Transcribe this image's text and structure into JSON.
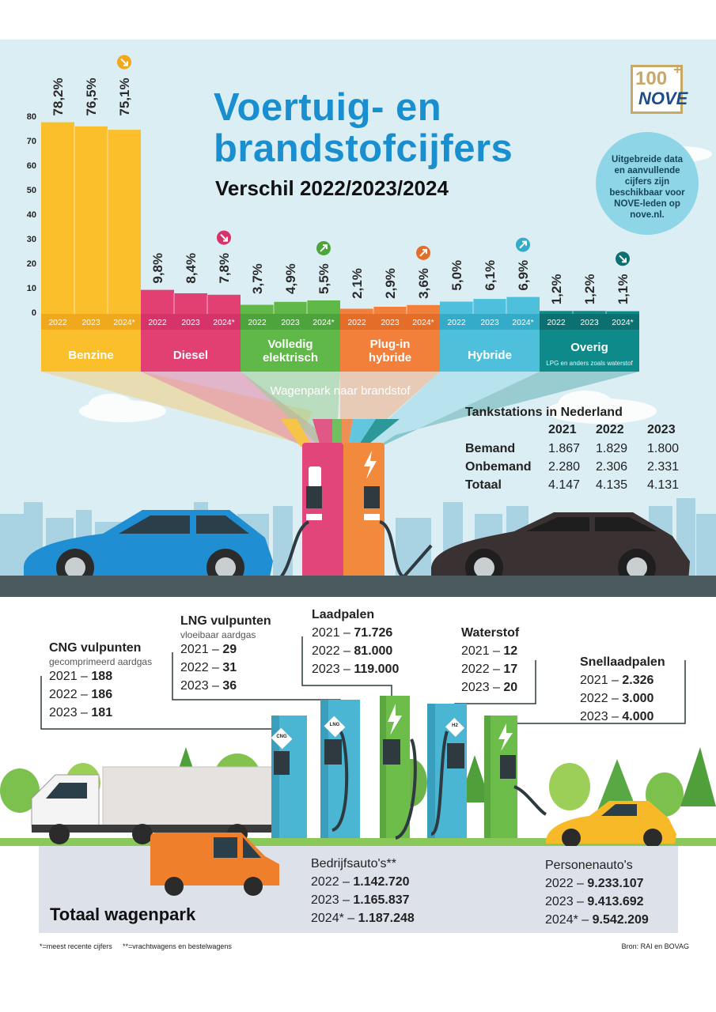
{
  "title": {
    "line1": "Voertuig- en",
    "line2": "brandstofcijfers",
    "subtitle": "Verschil 2022/2023/2024"
  },
  "logo": {
    "top": "100",
    "plus": "+",
    "name": "NOVE"
  },
  "info_bubble": {
    "lines": [
      "Uitgebreide data",
      "en aanvullende",
      "cijfers zijn",
      "beschikbaar voor",
      "NOVE-leden op",
      "nove.nl."
    ]
  },
  "chart_data": {
    "type": "bar",
    "title": "Wagenpark naar brandstof",
    "ylim": [
      0,
      80
    ],
    "yticks": [
      0,
      10,
      20,
      30,
      40,
      50,
      60,
      70,
      80
    ],
    "years": [
      "2022",
      "2023",
      "2024*"
    ],
    "groups": [
      {
        "name": "Benzine",
        "values": [
          78.2,
          76.5,
          75.1
        ],
        "labels": [
          "78,2%",
          "76,5%",
          "75,1%"
        ],
        "trend": "down",
        "color": "#fbbf2b",
        "label_color": "#f0a81c",
        "note": ""
      },
      {
        "name": "Diesel",
        "values": [
          9.8,
          8.4,
          7.8
        ],
        "labels": [
          "9,8%",
          "8,4%",
          "7,8%"
        ],
        "trend": "down",
        "color": "#e23f73",
        "label_color": "#d6336a",
        "note": ""
      },
      {
        "name": "Volledig elektrisch",
        "values": [
          3.7,
          4.9,
          5.5
        ],
        "labels": [
          "3,7%",
          "4,9%",
          "5,5%"
        ],
        "trend": "up",
        "color": "#5fb847",
        "label_color": "#4ea43c",
        "note": ""
      },
      {
        "name": "Plug-in hybride",
        "values": [
          2.1,
          2.9,
          3.6
        ],
        "labels": [
          "2,1%",
          "2,9%",
          "3,6%"
        ],
        "trend": "up",
        "color": "#f27f3a",
        "label_color": "#e56d2a",
        "note": ""
      },
      {
        "name": "Hybride",
        "values": [
          5.0,
          6.1,
          6.9
        ],
        "labels": [
          "5,0%",
          "6,1%",
          "6,9%"
        ],
        "trend": "up",
        "color": "#4ec0dc",
        "label_color": "#33abc9",
        "note": ""
      },
      {
        "name": "Overig",
        "values": [
          1.2,
          1.2,
          1.1
        ],
        "labels": [
          "1,2%",
          "1,2%",
          "1,1%"
        ],
        "trend": "down",
        "color": "#0f8a8a",
        "label_color": "#0c7070",
        "note": "LPG en anders zoals waterstof"
      }
    ]
  },
  "tankstations": {
    "title": "Tankstations in Nederland",
    "years": [
      "2021",
      "2022",
      "2023"
    ],
    "rows": [
      {
        "label": "Bemand",
        "values": [
          "1.867",
          "1.829",
          "1.800"
        ]
      },
      {
        "label": "Onbemand",
        "values": [
          "2.280",
          "2.306",
          "2.331"
        ]
      },
      {
        "label": "Totaal",
        "values": [
          "4.147",
          "4.135",
          "4.131"
        ]
      }
    ]
  },
  "cng": {
    "title": "CNG vulpunten",
    "subtitle": "gecomprimeerd aardgas",
    "rows": [
      {
        "year": "2021 –",
        "value": "188"
      },
      {
        "year": "2022 –",
        "value": "186"
      },
      {
        "year": "2023 –",
        "value": "181"
      }
    ]
  },
  "lng": {
    "title": "LNG vulpunten",
    "subtitle": "vloeibaar aardgas",
    "rows": [
      {
        "year": "2021 –",
        "value": "29"
      },
      {
        "year": "2022 –",
        "value": "31"
      },
      {
        "year": "2023 –",
        "value": "36"
      }
    ]
  },
  "laadpalen": {
    "title": "Laadpalen",
    "rows": [
      {
        "year": "2021 –",
        "value": "71.726"
      },
      {
        "year": "2022 –",
        "value": "81.000"
      },
      {
        "year": "2023 –",
        "value": "119.000"
      }
    ]
  },
  "waterstof": {
    "title": "Waterstof",
    "rows": [
      {
        "year": "2021 –",
        "value": "12"
      },
      {
        "year": "2022 –",
        "value": "17"
      },
      {
        "year": "2023 –",
        "value": "20"
      }
    ]
  },
  "snellaadpalen": {
    "title": "Snellaadpalen",
    "rows": [
      {
        "year": "2021 –",
        "value": "2.326"
      },
      {
        "year": "2022 –",
        "value": "3.000"
      },
      {
        "year": "2023 –",
        "value": "4.000"
      }
    ]
  },
  "pump_labels": {
    "cng": "CNG",
    "lng": "LNG",
    "h2": "H2"
  },
  "totaal": {
    "title": "Totaal wagenpark",
    "bedrijf": {
      "title": "Bedrijfsauto's**",
      "rows": [
        {
          "year": "2022 –",
          "value": "1.142.720"
        },
        {
          "year": "2023 –",
          "value": "1.165.837"
        },
        {
          "year": "2024* –",
          "value": "1.187.248"
        }
      ]
    },
    "personen": {
      "title": "Personenauto's",
      "rows": [
        {
          "year": "2022 –",
          "value": "9.233.107"
        },
        {
          "year": "2023 –",
          "value": "9.413.692"
        },
        {
          "year": "2024* –",
          "value": "9.542.209"
        }
      ]
    }
  },
  "footnotes": {
    "left1": "*=meest recente cijfers",
    "left2": "**=vrachtwagens en bestelwagens",
    "right": "Bron: RAI en BOVAG"
  }
}
